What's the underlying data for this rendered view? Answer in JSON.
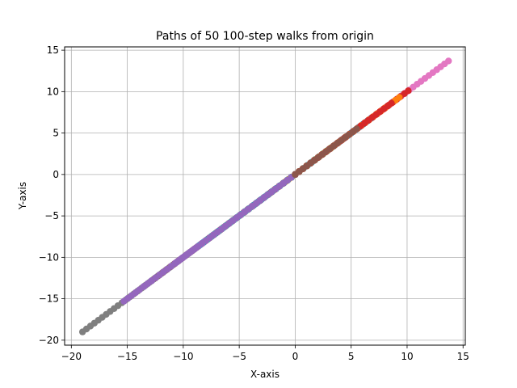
{
  "chart_data": {
    "type": "scatter",
    "title": "Paths of 50 100-step walks from origin",
    "xlabel": "X-axis",
    "ylabel": "Y-axis",
    "xlim": [
      -20.6,
      15.2
    ],
    "ylim": [
      -20.6,
      15.4
    ],
    "xticks": [
      -20,
      -15,
      -10,
      -5,
      0,
      5,
      10,
      15
    ],
    "yticks": [
      -20,
      -15,
      -10,
      -5,
      0,
      5,
      10,
      15
    ],
    "grid": true,
    "marker": "circle-with-line",
    "colors": [
      "#1f77b4",
      "#ff7f0e",
      "#2ca02c",
      "#d62728",
      "#9467bd",
      "#8c564b",
      "#e377c2",
      "#7f7f7f",
      "#bcbd22",
      "#17becf"
    ],
    "series": [
      {
        "color": "#e377c2",
        "x_start": 0,
        "x_end": 13.7
      },
      {
        "color": "#7f7f7f",
        "x_start": 0,
        "x_end": -19.0
      },
      {
        "color": "#9467bd",
        "x_start": 0,
        "x_end": -15.3
      },
      {
        "color": "#d62728",
        "x_start": 0,
        "x_end": 10.1
      },
      {
        "color": "#ff7f0e",
        "x_start": 0,
        "x_end": 9.3
      },
      {
        "color": "#1f77b4",
        "x_start": 0,
        "x_end": 6.8
      },
      {
        "color": "#bcbd22",
        "x_start": 0,
        "x_end": -6.6
      },
      {
        "color": "#17becf",
        "x_start": 0,
        "x_end": -5.2
      },
      {
        "color": "#8c564b",
        "x_start": 0,
        "x_end": -9.6
      },
      {
        "color": "#2ca02c",
        "x_start": 0,
        "x_end": 3.2
      },
      {
        "color": "#e377c2",
        "x_start": 0,
        "x_end": -11.8
      },
      {
        "color": "#d62728",
        "x_start": 0,
        "x_end": -2.2
      },
      {
        "color": "#ff7f0e",
        "x_start": 0,
        "x_end": -0.9
      },
      {
        "color": "#17becf",
        "x_start": 0,
        "x_end": 1.5
      },
      {
        "color": "#bcbd22",
        "x_start": 0,
        "x_end": 3.8
      },
      {
        "color": "#d62728",
        "x_start": 0,
        "x_end": 4.4
      },
      {
        "color": "#1f77b4",
        "x_start": 0,
        "x_end": -3.7
      },
      {
        "color": "#8c564b",
        "x_start": 0,
        "x_end": -12.5
      },
      {
        "color": "#9467bd",
        "x_start": 0,
        "x_end": -10.6
      },
      {
        "color": "#2ca02c",
        "x_start": 0,
        "x_end": -7.9
      },
      {
        "color": "#17becf",
        "x_start": 0,
        "x_end": -8.6
      },
      {
        "color": "#ff7f0e",
        "x_start": 0,
        "x_end": 8.0
      },
      {
        "color": "#d62728",
        "x_start": 0,
        "x_end": 8.6
      },
      {
        "color": "#9467bd",
        "x_start": 0,
        "x_end": -13.5
      },
      {
        "color": "#8c564b",
        "x_start": 0,
        "x_end": 5.5
      }
    ]
  }
}
